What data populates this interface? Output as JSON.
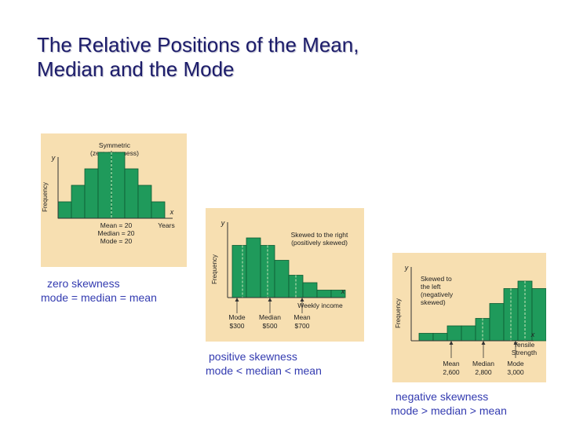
{
  "slide": {
    "title_line1": "The Relative Positions of the Mean,",
    "title_line2": "Median and the Mode"
  },
  "colors": {
    "bar": "#1f9a5b",
    "panel": "#f7dfb1",
    "median_line": "#c8e6b8",
    "caption": "#333bb0"
  },
  "chart_data": [
    {
      "type": "bar",
      "title_lines": [
        "Symmetric",
        "(zero skewness)"
      ],
      "ylabel": "Frequency",
      "y_letter": "y",
      "x_letter": "x",
      "xlabel": "Years",
      "values": [
        2,
        4,
        6,
        8,
        8,
        6,
        4,
        2
      ],
      "annotations": [
        "Mean = 20",
        "Median = 20",
        "Mode = 20"
      ],
      "caption": [
        "zero skewness",
        "mode = median = mean"
      ]
    },
    {
      "type": "bar",
      "title_lines": [
        "Skewed to the right",
        "(positively skewed)"
      ],
      "ylabel": "Frequency",
      "y_letter": "y",
      "x_letter": "x",
      "xlabel": "Weekly income",
      "values": [
        7,
        8,
        7,
        5,
        3,
        2,
        1,
        1
      ],
      "markers": [
        {
          "label": "Mode",
          "value": "$300"
        },
        {
          "label": "Median",
          "value": "$500"
        },
        {
          "label": "Mean",
          "value": "$700"
        }
      ],
      "caption": [
        "positive skewness",
        "mode < median < mean"
      ]
    },
    {
      "type": "bar",
      "title_lines": [
        "Skewed to",
        "the left",
        "(negatively",
        "skewed)"
      ],
      "ylabel": "Frequency",
      "y_letter": "y",
      "x_letter": "x",
      "xlabel_lines": [
        "Tensile",
        "Strength"
      ],
      "values": [
        1,
        1,
        2,
        2,
        3,
        5,
        7,
        8,
        7
      ],
      "markers": [
        {
          "label": "Mean",
          "value": "2,600"
        },
        {
          "label": "Median",
          "value": "2,800"
        },
        {
          "label": "Mode",
          "value": "3,000"
        }
      ],
      "caption": [
        "negative skewness",
        "mode > median > mean"
      ]
    }
  ]
}
